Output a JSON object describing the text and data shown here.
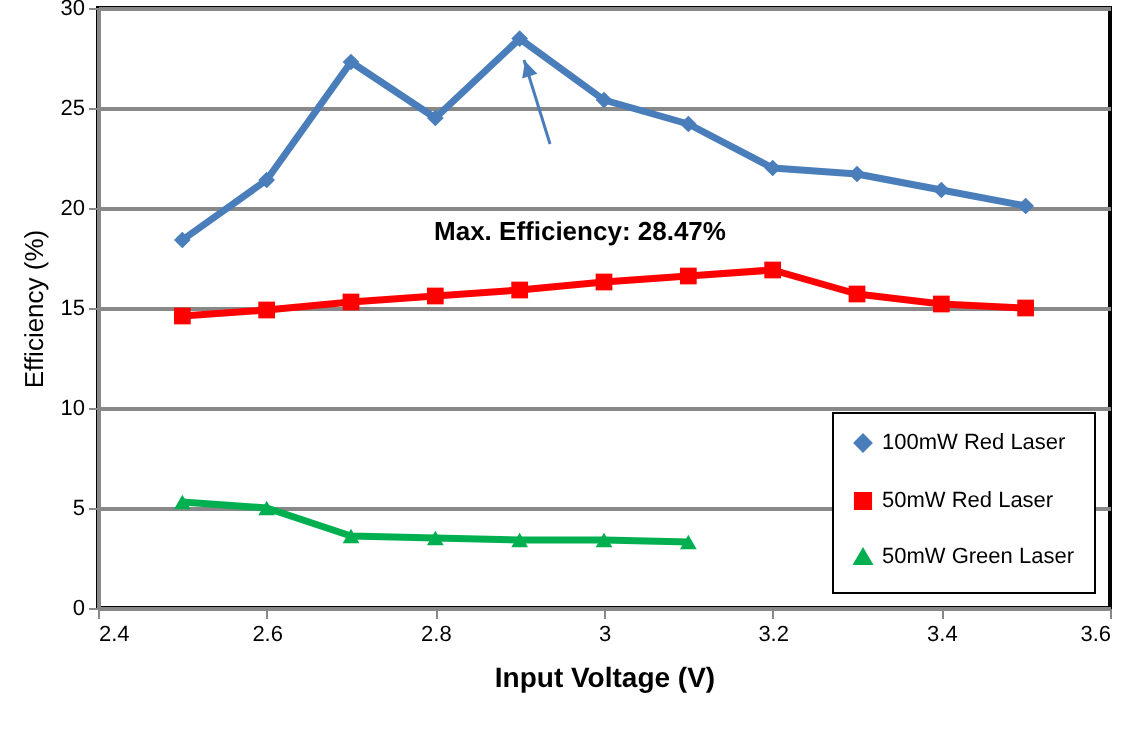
{
  "chart_data": {
    "type": "line",
    "xlabel": "Input Voltage (V)",
    "ylabel": "Efficiency (%)",
    "x": [
      2.5,
      2.6,
      2.7,
      2.8,
      2.9,
      3.0,
      3.1,
      3.2,
      3.3,
      3.4,
      3.5
    ],
    "series": [
      {
        "name": "100mW Red Laser",
        "color": "#4a7ebb",
        "marker": "diamond",
        "values": [
          18.4,
          21.4,
          27.3,
          24.5,
          28.47,
          25.4,
          24.2,
          22.0,
          21.7,
          20.9,
          20.1
        ]
      },
      {
        "name": "50mW Red Laser",
        "color": "#ff0000",
        "marker": "square",
        "values": [
          14.6,
          14.9,
          15.3,
          15.6,
          15.9,
          16.3,
          16.6,
          16.9,
          15.7,
          15.2,
          15.0
        ]
      },
      {
        "name": "50mW Green Laser",
        "color": "#00b050",
        "marker": "triangle",
        "values": [
          5.3,
          5.0,
          3.6,
          3.5,
          3.4,
          3.4,
          3.3,
          null,
          null,
          null,
          null
        ]
      }
    ],
    "xlim": [
      2.4,
      3.6
    ],
    "xticks": [
      2.4,
      2.6,
      2.8,
      3,
      3.2,
      3.4,
      3.6
    ],
    "ylim": [
      0,
      30
    ],
    "yticks": [
      0,
      5,
      10,
      15,
      20,
      25,
      30
    ],
    "grid": "y",
    "legend": "bottom right",
    "line_style": "solid",
    "annotations": [
      "Max. Efficiency: 28.47%"
    ]
  }
}
